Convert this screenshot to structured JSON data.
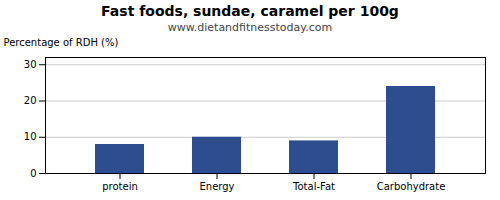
{
  "chart_data": {
    "type": "bar",
    "title": "Fast foods, sundae, caramel per 100g",
    "subtitle": "www.dietandfitnesstoday.com",
    "categories": [
      "protein",
      "Energy",
      "Total-Fat",
      "Carbohydrate"
    ],
    "values": [
      8,
      10,
      9,
      24
    ],
    "color": "#2e4d8e",
    "ylabel": "Percentage of RDH (%)",
    "ylim": [
      0,
      32
    ],
    "yticks": [
      0,
      10,
      20,
      30
    ],
    "grid": true
  }
}
